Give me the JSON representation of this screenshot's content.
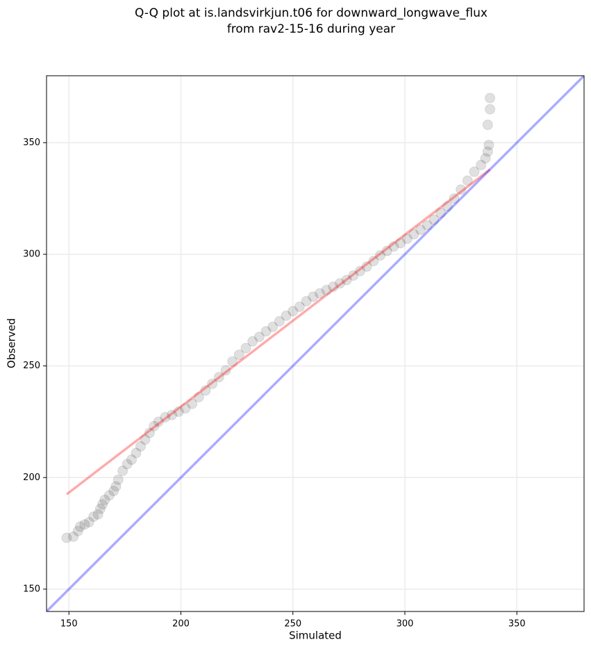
{
  "chart_data": {
    "type": "scatter",
    "title": [
      "Q-Q plot at is.landsvirkjun.t06 for downward_longwave_flux",
      "from rav2-15-16 during year"
    ],
    "x_label": "Simulated",
    "y_label": "Observed",
    "xlim": [
      140,
      380
    ],
    "ylim": [
      140,
      380
    ],
    "xticks": [
      150,
      200,
      250,
      300,
      350
    ],
    "yticks": [
      150,
      200,
      250,
      300,
      350
    ],
    "grid": true,
    "color": "#000000",
    "x": [
      149,
      152,
      154,
      155,
      157,
      159,
      161,
      163,
      164,
      165,
      166,
      168,
      170,
      171,
      172,
      174,
      176,
      178,
      180,
      182,
      184,
      186,
      188,
      190,
      193,
      196,
      199,
      202,
      205,
      208,
      211,
      214,
      217,
      220,
      223,
      226,
      229,
      232,
      235,
      238,
      241,
      244,
      247,
      250,
      253,
      256,
      259,
      262,
      265,
      268,
      271,
      274,
      277,
      280,
      283,
      286,
      289,
      292,
      295,
      298,
      301,
      304,
      307,
      310,
      313,
      316,
      319,
      322,
      325,
      328,
      331,
      334,
      336,
      337,
      337.5,
      337,
      338,
      338
    ],
    "y": [
      173,
      173.5,
      176,
      178,
      179,
      180,
      182.5,
      183.5,
      186,
      188,
      190,
      192,
      194,
      196,
      199,
      203,
      206,
      208,
      211,
      214,
      217,
      220,
      223,
      225,
      227,
      228,
      229.5,
      231,
      233,
      236,
      239,
      242,
      245,
      248,
      252,
      255,
      258,
      261,
      263,
      265.5,
      267.5,
      270,
      272.5,
      274.5,
      276.5,
      279,
      281,
      282.5,
      284,
      285.5,
      287,
      288.5,
      290.5,
      292.5,
      294.5,
      297,
      299.5,
      301.5,
      303.5,
      305,
      307,
      309,
      311,
      313,
      315.5,
      318.5,
      321.5,
      325,
      329,
      333,
      337,
      340,
      343,
      346,
      349,
      358,
      365,
      370
    ],
    "lines": [
      {
        "color": "#ff0000",
        "x": [
          149,
          338
        ],
        "y": [
          192.5,
          338
        ]
      },
      {
        "color": "#0000ff",
        "x": [
          140,
          380
        ],
        "y": [
          140,
          380
        ]
      }
    ]
  }
}
